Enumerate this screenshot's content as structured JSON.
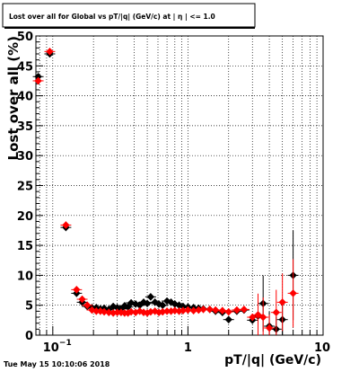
{
  "title": "Lost over all for Global vs pT/|q| (GeV/c) at | η | <= 1.0",
  "footer": "Tue May 15 10:10:06 2018",
  "chart_data": {
    "type": "scatter",
    "title": "Lost over all for Global vs pT/|q| (GeV/c) at | η | <= 1.0",
    "xlabel": "pT/|q| (GeV/c)",
    "ylabel": "Lost over all (%)",
    "xscale": "log",
    "xlim": [
      0.075,
      10
    ],
    "ylim": [
      0,
      50
    ],
    "grid": true,
    "x_tick_labels": [
      "10^-1",
      "1",
      "10"
    ],
    "y_ticks": [
      0,
      5,
      10,
      15,
      20,
      25,
      30,
      35,
      40,
      45,
      50
    ],
    "series": [
      {
        "color": "#000000",
        "marker": "diamond",
        "points": [
          {
            "x": 0.078,
            "y": 43.2
          },
          {
            "x": 0.095,
            "y": 47.0
          },
          {
            "x": 0.125,
            "y": 18.0
          },
          {
            "x": 0.15,
            "y": 7.0
          },
          {
            "x": 0.165,
            "y": 5.5
          },
          {
            "x": 0.18,
            "y": 4.8
          },
          {
            "x": 0.195,
            "y": 4.6
          },
          {
            "x": 0.21,
            "y": 4.6
          },
          {
            "x": 0.225,
            "y": 4.4
          },
          {
            "x": 0.24,
            "y": 4.5
          },
          {
            "x": 0.26,
            "y": 4.3
          },
          {
            "x": 0.28,
            "y": 4.8
          },
          {
            "x": 0.3,
            "y": 4.6
          },
          {
            "x": 0.32,
            "y": 4.4
          },
          {
            "x": 0.34,
            "y": 4.9
          },
          {
            "x": 0.36,
            "y": 4.7
          },
          {
            "x": 0.38,
            "y": 5.4
          },
          {
            "x": 0.41,
            "y": 5.2
          },
          {
            "x": 0.44,
            "y": 5.0
          },
          {
            "x": 0.47,
            "y": 5.5
          },
          {
            "x": 0.5,
            "y": 5.3
          },
          {
            "x": 0.53,
            "y": 6.4
          },
          {
            "x": 0.57,
            "y": 5.5
          },
          {
            "x": 0.61,
            "y": 5.2
          },
          {
            "x": 0.65,
            "y": 5.0
          },
          {
            "x": 0.7,
            "y": 5.7
          },
          {
            "x": 0.75,
            "y": 5.5
          },
          {
            "x": 0.8,
            "y": 5.2
          },
          {
            "x": 0.86,
            "y": 5.0
          },
          {
            "x": 0.92,
            "y": 4.8
          },
          {
            "x": 1.0,
            "y": 4.7
          },
          {
            "x": 1.1,
            "y": 4.6
          },
          {
            "x": 1.2,
            "y": 4.5
          },
          {
            "x": 1.3,
            "y": 4.4
          },
          {
            "x": 1.45,
            "y": 4.3
          },
          {
            "x": 1.6,
            "y": 4.0
          },
          {
            "x": 1.8,
            "y": 3.8
          },
          {
            "x": 2.0,
            "y": 2.6
          },
          {
            "x": 2.3,
            "y": 4.0
          },
          {
            "x": 2.6,
            "y": 4.2
          },
          {
            "x": 3.0,
            "y": 2.5
          },
          {
            "x": 3.3,
            "y": 3.2
          },
          {
            "x": 3.6,
            "y": 5.3
          },
          {
            "x": 4.0,
            "y": 1.5
          },
          {
            "x": 4.5,
            "y": 1.0
          },
          {
            "x": 5.0,
            "y": 2.6
          },
          {
            "x": 6.0,
            "y": 10.0
          }
        ]
      },
      {
        "color": "#ff0000",
        "marker": "diamond",
        "points": [
          {
            "x": 0.078,
            "y": 42.5
          },
          {
            "x": 0.095,
            "y": 47.4
          },
          {
            "x": 0.125,
            "y": 18.4
          },
          {
            "x": 0.15,
            "y": 7.6
          },
          {
            "x": 0.165,
            "y": 6.0
          },
          {
            "x": 0.18,
            "y": 5.0
          },
          {
            "x": 0.195,
            "y": 4.2
          },
          {
            "x": 0.21,
            "y": 4.0
          },
          {
            "x": 0.225,
            "y": 4.0
          },
          {
            "x": 0.24,
            "y": 3.9
          },
          {
            "x": 0.26,
            "y": 3.8
          },
          {
            "x": 0.28,
            "y": 3.7
          },
          {
            "x": 0.3,
            "y": 3.8
          },
          {
            "x": 0.32,
            "y": 3.8
          },
          {
            "x": 0.34,
            "y": 3.7
          },
          {
            "x": 0.36,
            "y": 3.7
          },
          {
            "x": 0.38,
            "y": 3.9
          },
          {
            "x": 0.41,
            "y": 3.8
          },
          {
            "x": 0.44,
            "y": 4.0
          },
          {
            "x": 0.47,
            "y": 3.8
          },
          {
            "x": 0.5,
            "y": 3.7
          },
          {
            "x": 0.53,
            "y": 3.9
          },
          {
            "x": 0.57,
            "y": 4.0
          },
          {
            "x": 0.61,
            "y": 3.8
          },
          {
            "x": 0.65,
            "y": 3.9
          },
          {
            "x": 0.7,
            "y": 4.0
          },
          {
            "x": 0.75,
            "y": 4.0
          },
          {
            "x": 0.8,
            "y": 4.1
          },
          {
            "x": 0.86,
            "y": 4.0
          },
          {
            "x": 0.92,
            "y": 4.1
          },
          {
            "x": 1.0,
            "y": 4.2
          },
          {
            "x": 1.1,
            "y": 4.1
          },
          {
            "x": 1.2,
            "y": 4.2
          },
          {
            "x": 1.3,
            "y": 4.3
          },
          {
            "x": 1.45,
            "y": 4.3
          },
          {
            "x": 1.6,
            "y": 4.2
          },
          {
            "x": 1.8,
            "y": 4.1
          },
          {
            "x": 2.0,
            "y": 3.9
          },
          {
            "x": 2.3,
            "y": 4.2
          },
          {
            "x": 2.6,
            "y": 4.3
          },
          {
            "x": 3.0,
            "y": 3.0
          },
          {
            "x": 3.3,
            "y": 3.4
          },
          {
            "x": 3.6,
            "y": 3.0
          },
          {
            "x": 4.0,
            "y": 1.2
          },
          {
            "x": 4.5,
            "y": 3.8
          },
          {
            "x": 5.0,
            "y": 5.5
          },
          {
            "x": 6.0,
            "y": 7.0
          }
        ]
      }
    ]
  }
}
